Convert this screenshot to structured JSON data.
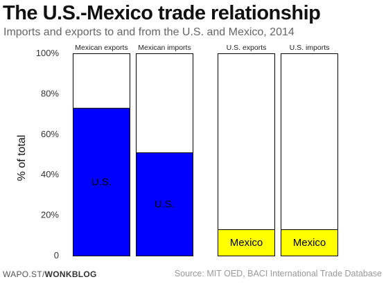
{
  "header": {
    "title": "The U.S.-Mexico trade relationship",
    "subtitle": "Imports and exports to and from the U.S. and Mexico, 2014"
  },
  "footer": {
    "brand_prefix": "WAPO.ST/",
    "brand_name": "WONKBLOG",
    "source": "Source: MIT OED, BACI International Trade Database"
  },
  "chart_data": {
    "type": "bar",
    "stacked": true,
    "ylabel": "% of total",
    "ylim": [
      0,
      100
    ],
    "yticks": [
      0,
      20,
      40,
      60,
      80,
      100
    ],
    "ytick_labels": [
      "0",
      "20%",
      "40%",
      "60%",
      "80%",
      "100%"
    ],
    "grid": false,
    "groups": [
      {
        "bars": [
          {
            "category": "Mexican exports",
            "segment_label": "U.S.",
            "value": 73,
            "color": "#0000ff"
          },
          {
            "category": "Mexican imports",
            "segment_label": "U.S.",
            "value": 51,
            "color": "#0000ff"
          }
        ]
      },
      {
        "bars": [
          {
            "category": "U.S. exports",
            "segment_label": "Mexico",
            "value": 13,
            "color": "#ffff00"
          },
          {
            "category": "U.S. imports",
            "segment_label": "Mexico",
            "value": 13,
            "color": "#ffff00"
          }
        ]
      }
    ],
    "remainder_color": "#ffffff"
  }
}
